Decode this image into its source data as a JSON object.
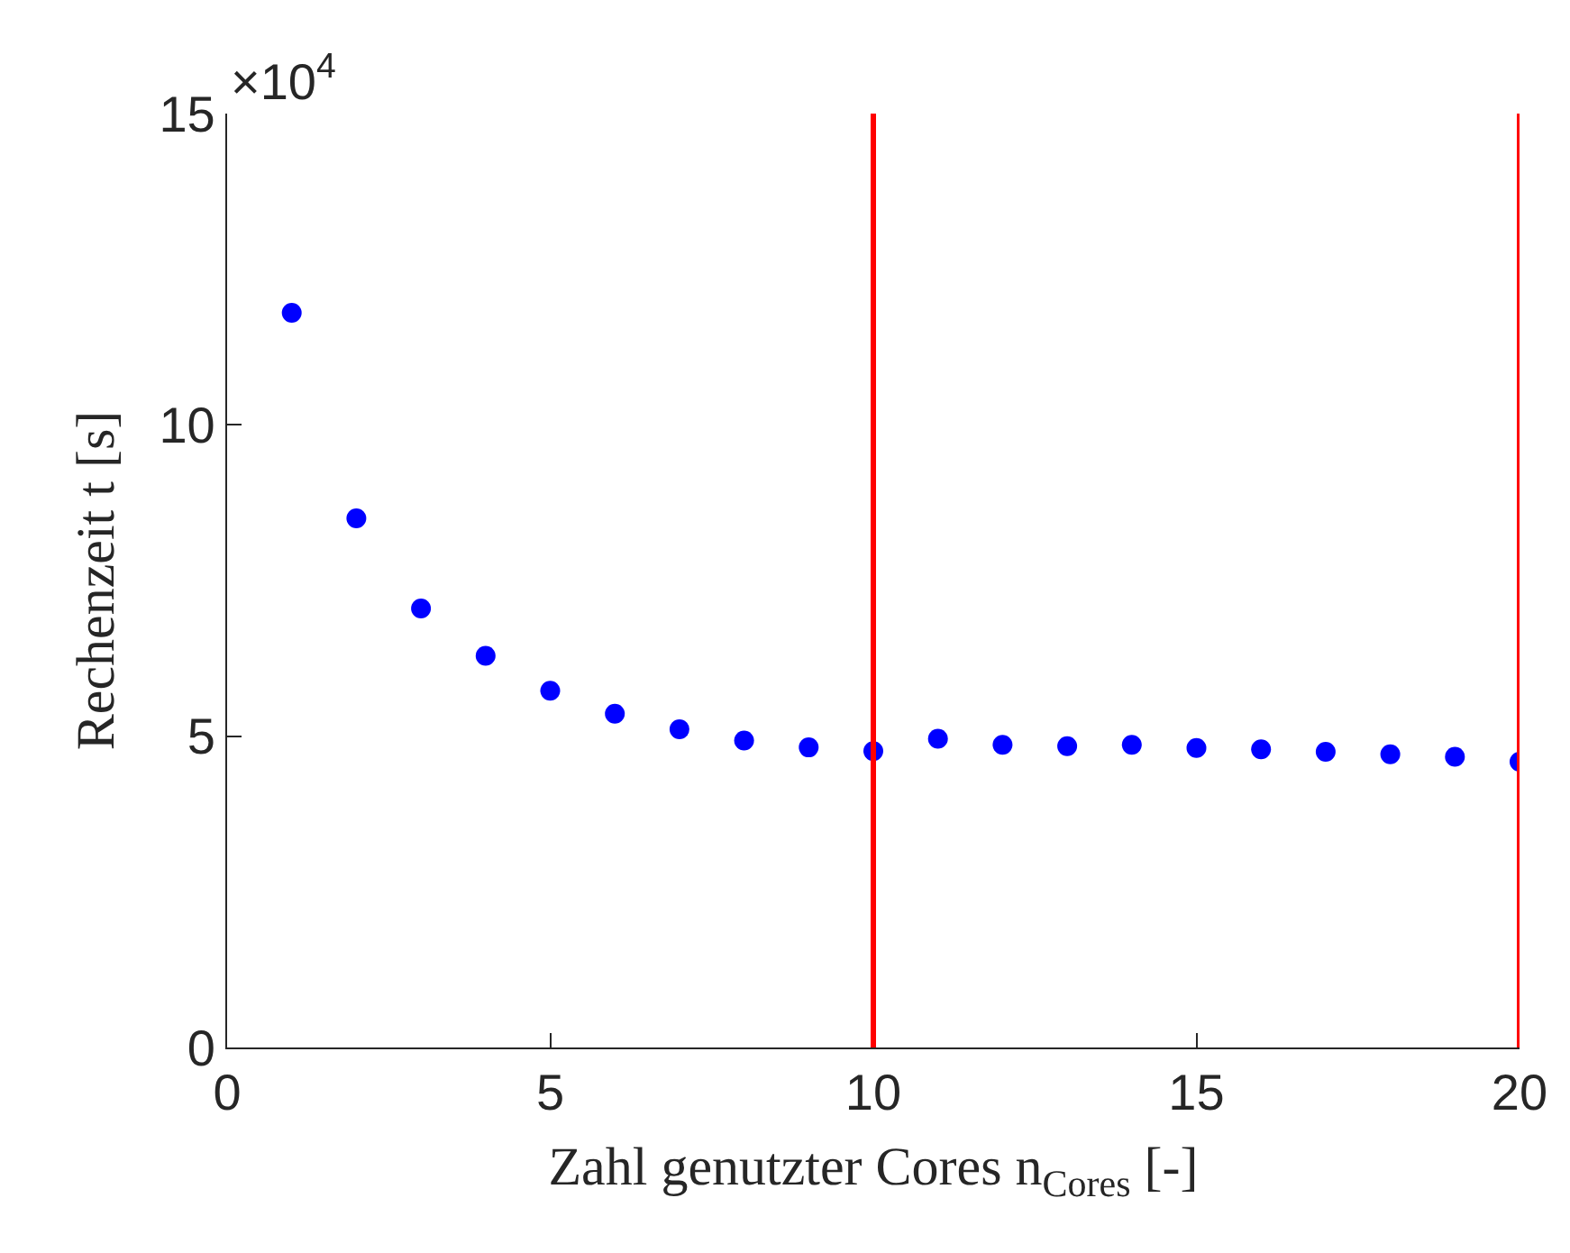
{
  "chart_data": {
    "type": "scatter",
    "xlabel": "Zahl genutzter Cores n$_{Cores}$ [-]",
    "ylabel": "Rechenzeit t [s]",
    "x": [
      1,
      2,
      3,
      4,
      5,
      6,
      7,
      8,
      9,
      10,
      11,
      12,
      13,
      14,
      15,
      16,
      17,
      18,
      19,
      20
    ],
    "series": [
      {
        "color": "#0000ff",
        "values": [
          11.8,
          8.5,
          7.05,
          6.29,
          5.73,
          5.36,
          5.11,
          4.93,
          4.82,
          4.76,
          4.96,
          4.86,
          4.84,
          4.86,
          4.81,
          4.79,
          4.75,
          4.71,
          4.67,
          4.59
        ]
      }
    ],
    "xlim": [
      0,
      20
    ],
    "xticks": [
      0,
      5,
      10,
      15,
      20
    ],
    "ylim": [
      0,
      15
    ],
    "yticks": [
      0,
      5,
      10,
      15
    ],
    "annotations": [
      "×10$^{4}$"
    ],
    "ref_lines": [
      {
        "axis": "x",
        "value": 10,
        "color": "#ff0000"
      },
      {
        "axis": "x",
        "value": 20,
        "color": "#ff0000"
      }
    ],
    "marker": "circle"
  }
}
